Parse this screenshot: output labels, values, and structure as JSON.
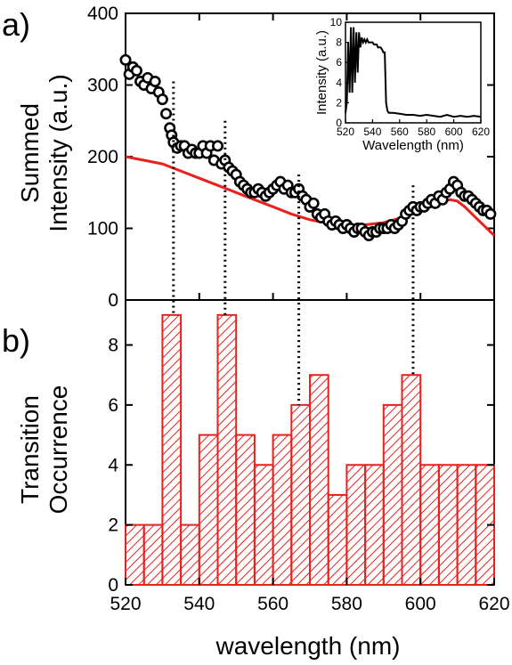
{
  "figure": {
    "panel_a_label": "a)",
    "panel_b_label": "b)",
    "xlabel": "wavelength (nm)",
    "ylabel_a": [
      "Summed",
      "Intensity (a.u.)"
    ],
    "ylabel_b": [
      "Transition",
      "Occurrence"
    ],
    "inset_xlabel": "Wavelength (nm)",
    "inset_ylabel": "Intensity (a.u.)"
  },
  "chart_data": [
    {
      "id": "panel-a",
      "type": "scatter",
      "title": "",
      "xlabel": "",
      "ylabel": "Summed Intensity (a.u.)",
      "xlim": [
        520,
        620
      ],
      "ylim": [
        0,
        400
      ],
      "xticks": [
        520,
        540,
        560,
        580,
        600,
        620
      ],
      "yticks": [
        0,
        100,
        200,
        300,
        400
      ],
      "series": [
        {
          "style": "open-circles",
          "color": "#000000",
          "x": [
            520,
            521,
            522,
            523,
            524,
            525,
            526,
            527,
            528,
            529,
            530,
            531,
            532,
            532.5,
            533,
            534,
            535,
            536,
            537,
            538,
            539,
            540,
            541,
            542,
            543,
            544,
            545,
            546,
            547,
            548,
            549,
            550,
            551,
            552,
            553,
            554,
            555,
            556,
            557,
            558,
            559,
            560,
            561,
            562,
            563,
            564,
            565,
            566,
            567,
            568,
            569,
            570,
            571,
            572,
            573,
            574,
            575,
            576,
            577,
            578,
            579,
            580,
            581,
            582,
            583,
            584,
            585,
            586,
            587,
            588,
            589,
            590,
            591,
            592,
            593,
            594,
            595,
            596,
            597,
            598,
            599,
            600,
            601,
            602,
            603,
            604,
            605,
            606,
            607,
            608,
            609,
            610,
            611,
            612,
            613,
            614,
            615,
            616,
            617,
            618,
            619
          ],
          "values": [
            335,
            315,
            325,
            320,
            305,
            300,
            310,
            295,
            305,
            290,
            280,
            260,
            240,
            230,
            220,
            212,
            215,
            215,
            205,
            210,
            205,
            205,
            215,
            205,
            215,
            195,
            215,
            190,
            195,
            185,
            180,
            175,
            165,
            160,
            155,
            150,
            150,
            155,
            150,
            145,
            150,
            155,
            160,
            165,
            155,
            160,
            150,
            150,
            155,
            145,
            140,
            130,
            135,
            120,
            115,
            120,
            110,
            105,
            110,
            105,
            100,
            105,
            100,
            95,
            100,
            100,
            95,
            90,
            95,
            95,
            100,
            100,
            100,
            105,
            100,
            105,
            110,
            120,
            125,
            130,
            125,
            130,
            130,
            135,
            140,
            135,
            145,
            140,
            150,
            155,
            165,
            160,
            150,
            145,
            145,
            140,
            135,
            130,
            125,
            125,
            120
          ]
        },
        {
          "style": "line",
          "color": "#e8211d",
          "x": [
            520,
            525,
            530,
            535,
            540,
            545,
            550,
            555,
            560,
            565,
            570,
            575,
            580,
            585,
            590,
            595,
            600,
            605,
            608,
            610,
            612,
            615,
            618,
            620
          ],
          "values": [
            200,
            195,
            190,
            180,
            170,
            160,
            150,
            140,
            130,
            120,
            112,
            107,
            105,
            105,
            108,
            115,
            125,
            135,
            140,
            138,
            130,
            115,
            100,
            90
          ]
        }
      ],
      "annotations": {
        "dotted_lines_x": [
          533,
          547,
          567,
          598
        ],
        "dotted_lines_top_y": [
          305,
          250,
          175,
          160
        ]
      },
      "inset": {
        "type": "line",
        "xlabel": "Wavelength (nm)",
        "ylabel": "Intensity (a.u.)",
        "xlim": [
          520,
          620
        ],
        "ylim": [
          0,
          10
        ],
        "xticks": [
          520,
          540,
          560,
          580,
          600,
          620
        ],
        "yticks": [
          0,
          2,
          4,
          6,
          8,
          10
        ],
        "x": [
          520,
          521,
          522,
          523,
          524,
          525,
          526,
          527,
          528,
          529,
          530,
          531,
          532,
          533,
          534,
          535,
          536,
          537,
          538,
          539,
          540,
          541,
          542,
          543,
          544,
          545,
          546,
          547,
          548,
          549,
          550,
          551,
          552,
          555,
          560,
          565,
          570,
          575,
          580,
          585,
          590,
          595,
          600,
          605,
          610,
          615,
          620
        ],
        "values": [
          1,
          2,
          8,
          3,
          9.5,
          3,
          9.5,
          4,
          9,
          5,
          9,
          7.5,
          8.5,
          8,
          8.3,
          8,
          8.3,
          8,
          8,
          8,
          8,
          7.8,
          7.8,
          7.8,
          7.5,
          7.5,
          7.5,
          7.3,
          7,
          7,
          2,
          1.2,
          1,
          1,
          0.9,
          0.8,
          0.8,
          0.7,
          0.8,
          0.7,
          0.6,
          0.8,
          0.6,
          0.7,
          0.6,
          0.7,
          0.6
        ]
      }
    },
    {
      "id": "panel-b",
      "type": "bar",
      "title": "",
      "xlabel": "wavelength (nm)",
      "ylabel": "Transition Occurrence",
      "xlim": [
        520,
        620
      ],
      "ylim": [
        0,
        9.5
      ],
      "xticks": [
        520,
        540,
        560,
        580,
        600,
        620
      ],
      "yticks": [
        0,
        2,
        4,
        6,
        8
      ],
      "bin_width": 5,
      "bin_starts": [
        520,
        525,
        530,
        535,
        540,
        545,
        550,
        555,
        560,
        565,
        570,
        575,
        580,
        585,
        590,
        595,
        600,
        605,
        610,
        615
      ],
      "values": [
        2,
        2,
        9,
        2,
        5,
        9,
        5,
        4,
        5,
        6,
        7,
        3,
        4,
        4,
        6,
        7,
        4,
        4,
        4,
        4
      ],
      "color": "#e8211d",
      "fill": "diagonal-hatch"
    }
  ]
}
